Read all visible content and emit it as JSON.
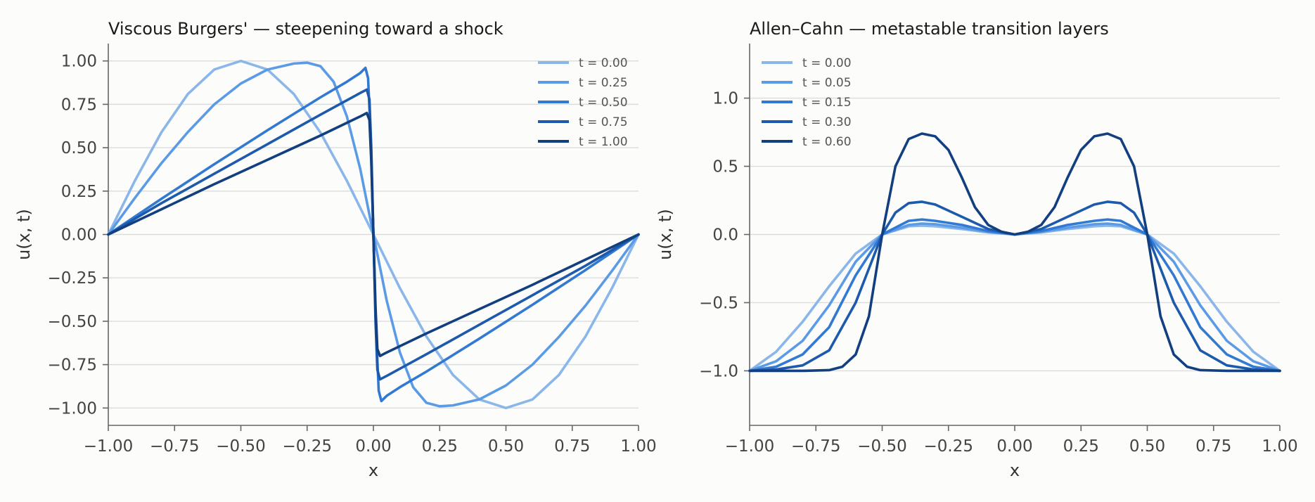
{
  "chart_data": [
    {
      "type": "line",
      "title": "Viscous Burgers' — steepening toward a shock",
      "xlabel": "x",
      "ylabel": "u(x, t)",
      "xlim": [
        -1.0,
        1.0
      ],
      "ylim": [
        -1.1,
        1.1
      ],
      "grid": "horizontal",
      "legend_position": "top-right",
      "xticks": [
        "−1.00",
        "−0.75",
        "−0.50",
        "−0.25",
        "0.00",
        "0.25",
        "0.50",
        "0.75",
        "1.00"
      ],
      "yticks": [
        "−1.00",
        "−0.75",
        "−0.50",
        "−0.25",
        "0.00",
        "0.25",
        "0.50",
        "0.75",
        "1.00"
      ],
      "series": [
        {
          "name": "t = 0.00",
          "color": "#8ab6ea",
          "x": [
            -1.0,
            -0.9,
            -0.8,
            -0.7,
            -0.6,
            -0.5,
            -0.4,
            -0.3,
            -0.2,
            -0.1,
            0.0,
            0.1,
            0.2,
            0.3,
            0.4,
            0.5,
            0.6,
            0.7,
            0.8,
            0.9,
            1.0
          ],
          "y": [
            0.0,
            0.309,
            0.588,
            0.809,
            0.951,
            1.0,
            0.951,
            0.809,
            0.588,
            0.309,
            0.0,
            -0.309,
            -0.588,
            -0.809,
            -0.951,
            -1.0,
            -0.951,
            -0.809,
            -0.588,
            -0.309,
            0.0
          ]
        },
        {
          "name": "t = 0.25",
          "color": "#5b9be6",
          "x": [
            -1.0,
            -0.9,
            -0.8,
            -0.7,
            -0.6,
            -0.5,
            -0.4,
            -0.3,
            -0.25,
            -0.2,
            -0.15,
            -0.1,
            -0.05,
            0.0,
            0.05,
            0.1,
            0.15,
            0.2,
            0.25,
            0.3,
            0.4,
            0.5,
            0.6,
            0.7,
            0.8,
            0.9,
            1.0
          ],
          "y": [
            0.0,
            0.21,
            0.41,
            0.59,
            0.75,
            0.87,
            0.95,
            0.985,
            0.99,
            0.97,
            0.88,
            0.68,
            0.38,
            0.0,
            -0.38,
            -0.68,
            -0.88,
            -0.97,
            -0.99,
            -0.985,
            -0.95,
            -0.87,
            -0.75,
            -0.59,
            -0.41,
            -0.21,
            0.0
          ]
        },
        {
          "name": "t = 0.50",
          "color": "#3279d2",
          "x": [
            -1.0,
            -0.8,
            -0.6,
            -0.4,
            -0.2,
            -0.1,
            -0.05,
            -0.03,
            -0.02,
            -0.01,
            0.0,
            0.01,
            0.02,
            0.03,
            0.05,
            0.1,
            0.2,
            0.4,
            0.6,
            0.8,
            1.0
          ],
          "y": [
            0.0,
            0.205,
            0.405,
            0.6,
            0.79,
            0.88,
            0.93,
            0.96,
            0.9,
            0.55,
            0.0,
            -0.55,
            -0.9,
            -0.96,
            -0.93,
            -0.88,
            -0.79,
            -0.6,
            -0.405,
            -0.205,
            0.0
          ]
        },
        {
          "name": "t = 0.75",
          "color": "#1d5aab",
          "x": [
            -1.0,
            -0.8,
            -0.6,
            -0.4,
            -0.2,
            -0.05,
            -0.025,
            -0.015,
            -0.008,
            0.0,
            0.008,
            0.015,
            0.025,
            0.05,
            0.2,
            0.4,
            0.6,
            0.8,
            1.0
          ],
          "y": [
            0.0,
            0.18,
            0.35,
            0.52,
            0.69,
            0.815,
            0.835,
            0.78,
            0.5,
            0.0,
            -0.5,
            -0.78,
            -0.835,
            -0.815,
            -0.69,
            -0.52,
            -0.35,
            -0.18,
            0.0
          ]
        },
        {
          "name": "t = 1.00",
          "color": "#123f7f",
          "x": [
            -1.0,
            -0.8,
            -0.6,
            -0.4,
            -0.2,
            -0.05,
            -0.025,
            -0.015,
            -0.008,
            0.0,
            0.008,
            0.015,
            0.025,
            0.05,
            0.2,
            0.4,
            0.6,
            0.8,
            1.0
          ],
          "y": [
            0.0,
            0.145,
            0.29,
            0.43,
            0.57,
            0.68,
            0.7,
            0.66,
            0.42,
            0.0,
            -0.42,
            -0.66,
            -0.7,
            -0.68,
            -0.57,
            -0.43,
            -0.29,
            -0.145,
            0.0
          ]
        }
      ]
    },
    {
      "type": "line",
      "title": "Allen–Cahn — metastable transition layers",
      "xlabel": "x",
      "ylabel": "u(x, t)",
      "xlim": [
        -1.0,
        1.0
      ],
      "ylim": [
        -1.4,
        1.4
      ],
      "grid": "horizontal",
      "legend_position": "top-left",
      "xticks": [
        "−1.00",
        "−0.75",
        "−0.50",
        "−0.25",
        "0.00",
        "0.25",
        "0.50",
        "0.75",
        "1.00"
      ],
      "yticks": [
        "−1.0",
        "−0.5",
        "0.0",
        "0.5",
        "1.0"
      ],
      "series": [
        {
          "name": "t = 0.00",
          "color": "#8ab6ea",
          "x": [
            -1.0,
            -0.9,
            -0.8,
            -0.7,
            -0.6,
            -0.5,
            -0.4,
            -0.35,
            -0.3,
            -0.2,
            -0.1,
            0.0,
            0.1,
            0.2,
            0.3,
            0.35,
            0.4,
            0.5,
            0.6,
            0.7,
            0.8,
            0.9,
            1.0
          ],
          "y": [
            -1.0,
            -0.86,
            -0.64,
            -0.38,
            -0.14,
            0.0,
            0.06,
            0.065,
            0.06,
            0.04,
            0.015,
            0.0,
            0.015,
            0.04,
            0.06,
            0.065,
            0.06,
            0.0,
            -0.14,
            -0.38,
            -0.64,
            -0.86,
            -1.0
          ]
        },
        {
          "name": "t = 0.05",
          "color": "#5b9be6",
          "x": [
            -1.0,
            -0.9,
            -0.8,
            -0.7,
            -0.6,
            -0.5,
            -0.4,
            -0.35,
            -0.3,
            -0.2,
            -0.1,
            0.0,
            0.1,
            0.2,
            0.3,
            0.35,
            0.4,
            0.5,
            0.6,
            0.7,
            0.8,
            0.9,
            1.0
          ],
          "y": [
            -1.0,
            -0.93,
            -0.78,
            -0.52,
            -0.2,
            0.0,
            0.07,
            0.08,
            0.075,
            0.05,
            0.02,
            0.0,
            0.02,
            0.05,
            0.075,
            0.08,
            0.07,
            0.0,
            -0.2,
            -0.52,
            -0.78,
            -0.93,
            -1.0
          ]
        },
        {
          "name": "t = 0.15",
          "color": "#3279d2",
          "x": [
            -1.0,
            -0.9,
            -0.8,
            -0.7,
            -0.6,
            -0.5,
            -0.4,
            -0.35,
            -0.3,
            -0.2,
            -0.1,
            0.0,
            0.1,
            0.2,
            0.3,
            0.35,
            0.4,
            0.5,
            0.6,
            0.7,
            0.8,
            0.9,
            1.0
          ],
          "y": [
            -1.0,
            -0.97,
            -0.88,
            -0.68,
            -0.3,
            0.0,
            0.1,
            0.11,
            0.1,
            0.07,
            0.025,
            0.0,
            0.025,
            0.07,
            0.1,
            0.11,
            0.1,
            0.0,
            -0.3,
            -0.68,
            -0.88,
            -0.97,
            -1.0
          ]
        },
        {
          "name": "t = 0.30",
          "color": "#1d5aab",
          "x": [
            -1.0,
            -0.9,
            -0.8,
            -0.7,
            -0.6,
            -0.55,
            -0.5,
            -0.45,
            -0.4,
            -0.35,
            -0.3,
            -0.2,
            -0.1,
            0.0,
            0.1,
            0.2,
            0.3,
            0.35,
            0.4,
            0.45,
            0.5,
            0.55,
            0.6,
            0.7,
            0.8,
            0.9,
            1.0
          ],
          "y": [
            -1.0,
            -0.99,
            -0.96,
            -0.85,
            -0.5,
            -0.25,
            0.0,
            0.16,
            0.23,
            0.24,
            0.22,
            0.13,
            0.04,
            0.0,
            0.04,
            0.13,
            0.22,
            0.24,
            0.23,
            0.16,
            0.0,
            -0.25,
            -0.5,
            -0.85,
            -0.96,
            -0.99,
            -1.0
          ]
        },
        {
          "name": "t = 0.60",
          "color": "#123f7f",
          "x": [
            -1.0,
            -0.8,
            -0.7,
            -0.65,
            -0.6,
            -0.55,
            -0.5,
            -0.45,
            -0.4,
            -0.35,
            -0.3,
            -0.25,
            -0.2,
            -0.15,
            -0.1,
            -0.05,
            0.0,
            0.05,
            0.1,
            0.15,
            0.2,
            0.25,
            0.3,
            0.35,
            0.4,
            0.45,
            0.5,
            0.55,
            0.6,
            0.65,
            0.7,
            0.8,
            1.0
          ],
          "y": [
            -1.0,
            -1.0,
            -0.995,
            -0.97,
            -0.88,
            -0.6,
            0.0,
            0.5,
            0.7,
            0.74,
            0.72,
            0.62,
            0.42,
            0.2,
            0.07,
            0.02,
            0.0,
            0.02,
            0.07,
            0.2,
            0.42,
            0.62,
            0.72,
            0.74,
            0.7,
            0.5,
            0.0,
            -0.6,
            -0.88,
            -0.97,
            -0.995,
            -1.0,
            -1.0
          ]
        }
      ]
    }
  ]
}
